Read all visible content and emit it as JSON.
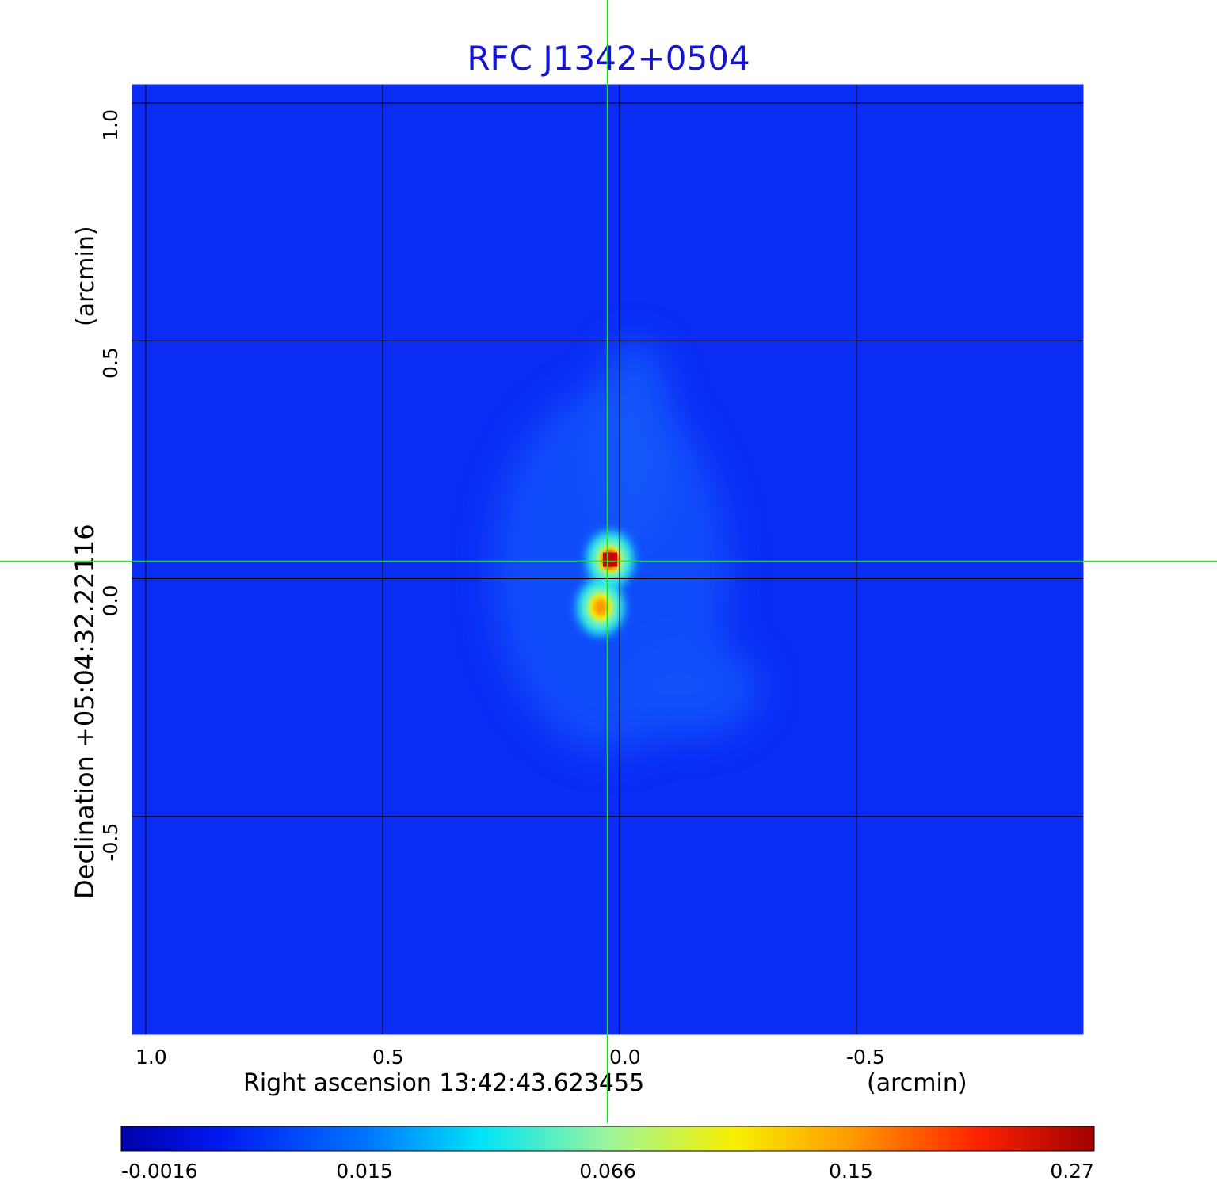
{
  "chart_data": {
    "type": "heatmap",
    "title": "RFC J1342+0504",
    "xlabel": "Right ascension  13:42:43.623455",
    "xunit": "(arcmin)",
    "ylabel": "Declination  +05:04:32.22116",
    "yunit": "(arcmin)",
    "xlim": [
      1.03,
      -0.98
    ],
    "ylim": [
      -0.96,
      1.04
    ],
    "x_ticks": [
      {
        "value": 1.0,
        "label": "1.0"
      },
      {
        "value": 0.5,
        "label": "0.5"
      },
      {
        "value": 0.0,
        "label": "0.0"
      },
      {
        "value": -0.5,
        "label": "-0.5"
      }
    ],
    "y_ticks": [
      {
        "value": 1.0,
        "label": "1.0"
      },
      {
        "value": 0.5,
        "label": "0.5"
      },
      {
        "value": 0.0,
        "label": "0.0"
      },
      {
        "value": -0.5,
        "label": "-0.5"
      }
    ],
    "grid": true,
    "crosshair": {
      "x": 0.026,
      "y": 0.037
    },
    "components": [
      {
        "x": 0.02,
        "y": 0.04,
        "peak": 0.27
      },
      {
        "x": 0.04,
        "y": -0.06,
        "peak": 0.15
      }
    ],
    "colorbar": {
      "ticks": [
        {
          "value": -0.0016,
          "label": "-0.0016"
        },
        {
          "value": 0.015,
          "label": "0.015"
        },
        {
          "value": 0.066,
          "label": "0.066"
        },
        {
          "value": 0.15,
          "label": "0.15"
        },
        {
          "value": 0.27,
          "label": "0.27"
        }
      ]
    }
  },
  "colors": {
    "title": "#1414d2",
    "background_map": "#0a2cf5",
    "grid": "#000000",
    "crosshair": "#22dd22"
  }
}
